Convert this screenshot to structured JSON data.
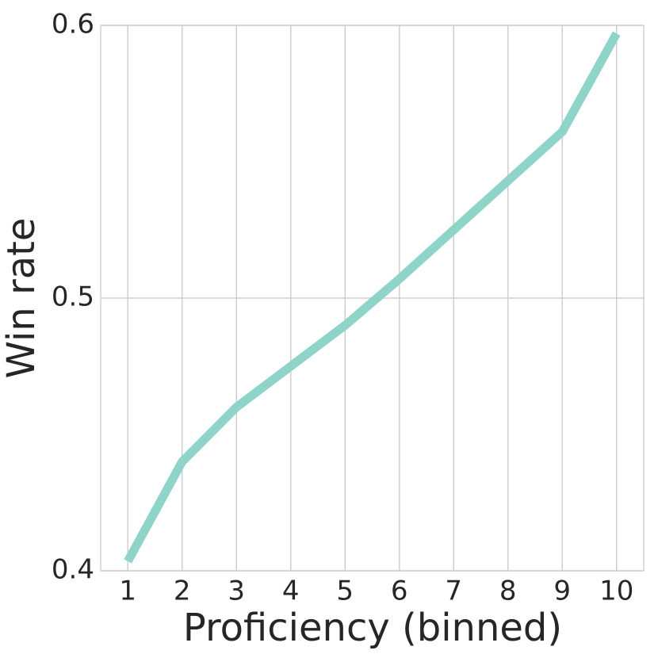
{
  "chart_data": {
    "type": "line",
    "x_label": "Proficiency (binned)",
    "y_label": "Win rate",
    "x": [
      1,
      2,
      3,
      4,
      5,
      6,
      7,
      8,
      9,
      10
    ],
    "series": [
      {
        "color": "#8fd4c8",
        "values": [
          0.4035,
          0.44,
          0.46,
          0.475,
          0.49,
          0.507,
          0.525,
          0.543,
          0.561,
          0.597
        ]
      }
    ],
    "xlim": [
      0.5,
      10.5
    ],
    "xticks": [
      1,
      2,
      3,
      4,
      5,
      6,
      7,
      8,
      9,
      10
    ],
    "ylim": [
      0.4,
      0.6
    ],
    "yticks": [
      0.4,
      0.5,
      0.6
    ],
    "grid": true
  }
}
